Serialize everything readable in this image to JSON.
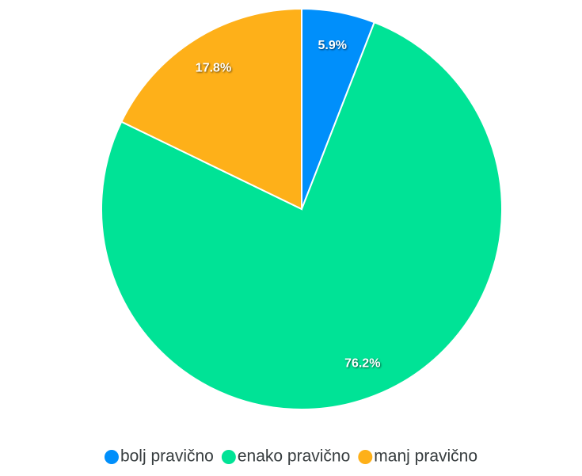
{
  "chart_data": {
    "type": "pie",
    "categories": [
      "bolj pravično",
      "enako pravično",
      "manj pravično"
    ],
    "values": [
      5.9,
      76.2,
      17.8
    ],
    "value_labels": [
      "5.9%",
      "76.2%",
      "17.8%"
    ],
    "colors": [
      "#008ffb",
      "#00e396",
      "#feb019"
    ],
    "legend": "bottom"
  }
}
